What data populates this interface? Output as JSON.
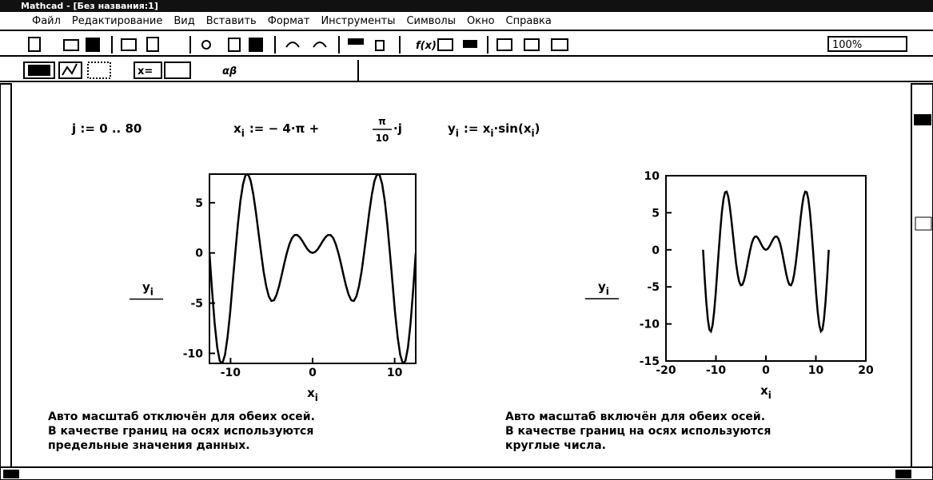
{
  "window_title": "Mathcad - [Без названия:1]",
  "menu": [
    "Файл",
    "Редактирование",
    "Вид",
    "Вставить",
    "Формат",
    "Инструменты",
    "Символы",
    "Окно",
    "Справка"
  ],
  "zoom": "100%",
  "equations": {
    "range": {
      "lhs": "j",
      "op": ":=",
      "rhs": "0 .. 80"
    },
    "x_def": {
      "lhs": "x",
      "lhs_sub": "i",
      "op": ":=",
      "rhs": "− 4·π +",
      "num": "π",
      "den": "10",
      "tail": "·j"
    },
    "y_def": {
      "lhs": "y",
      "lhs_sub": "i",
      "op": ":=",
      "rhs": "x",
      "rhs_sub": "i",
      "fn": "·sin(x",
      "fn_sub": "i",
      "close": ")"
    }
  },
  "chart_data": [
    {
      "type": "line",
      "xlabel": "x",
      "xlabel_sub": "i",
      "ylabel": "y",
      "ylabel_sub": "i",
      "x": [
        -12.57,
        -12.25,
        -11.94,
        -11.62,
        -11.31,
        -11,
        -10.68,
        -10.37,
        -10.05,
        -9.74,
        -9.42,
        -9.11,
        -8.8,
        -8.48,
        -8.17,
        -7.85,
        -7.54,
        -7.23,
        -6.91,
        -6.6,
        -6.28,
        -5.97,
        -5.65,
        -5.34,
        -5.03,
        -4.71,
        -4.4,
        -4.08,
        -3.77,
        -3.46,
        -3.14,
        -2.83,
        -2.51,
        -2.2,
        -1.88,
        -1.57,
        -1.26,
        -0.94,
        -0.63,
        -0.31,
        0,
        0.31,
        0.63,
        0.94,
        1.26,
        1.57,
        1.88,
        2.2,
        2.51,
        2.83,
        3.14,
        3.46,
        3.77,
        4.08,
        4.4,
        4.71,
        5.03,
        5.34,
        5.65,
        5.97,
        6.28,
        6.6,
        6.91,
        7.23,
        7.54,
        7.85,
        8.17,
        8.48,
        8.8,
        9.11,
        9.42,
        9.74,
        10.05,
        10.37,
        10.68,
        11,
        11.31,
        11.62,
        11.94,
        12.25,
        12.57
      ],
      "series": [
        {
          "color": "#000000",
          "values": [
            0,
            -3.79,
            -7.02,
            -9.4,
            -10.76,
            -11,
            -10.16,
            -8.39,
            -5.91,
            -3.01,
            0,
            2.82,
            5.17,
            6.86,
            7.77,
            7.85,
            7.17,
            5.85,
            4.06,
            2.04,
            0,
            -1.84,
            -3.32,
            -4.32,
            -4.78,
            -4.71,
            -4.18,
            -3.3,
            -2.22,
            -1.07,
            0,
            0.87,
            1.48,
            1.78,
            1.79,
            1.57,
            1.2,
            0.76,
            0.37,
            0.1,
            0,
            0.1,
            0.37,
            0.76,
            1.2,
            1.57,
            1.79,
            1.78,
            1.48,
            0.87,
            0,
            -1.07,
            -2.22,
            -3.3,
            -4.18,
            -4.71,
            -4.78,
            -4.32,
            -3.32,
            -1.84,
            0,
            2.04,
            4.06,
            5.85,
            7.17,
            7.85,
            7.77,
            6.86,
            5.17,
            2.82,
            0,
            -3.01,
            -5.91,
            -8.39,
            -10.16,
            -11,
            -10.76,
            -9.4,
            -7.02,
            -3.79,
            0
          ]
        }
      ],
      "xlim": [
        -12.57,
        12.57
      ],
      "ylim": [
        -11,
        7.85
      ],
      "xticks": [
        -10,
        0,
        10
      ],
      "yticks": [
        -10,
        -5,
        0,
        5
      ],
      "caption": [
        "Авто масштаб отключён для обеих осей.",
        "В качестве границ на осях используются",
        "предельные значения данных."
      ]
    },
    {
      "type": "line",
      "xlabel": "x",
      "xlabel_sub": "i",
      "ylabel": "y",
      "ylabel_sub": "i",
      "x": [
        -12.57,
        -12.25,
        -11.94,
        -11.62,
        -11.31,
        -11,
        -10.68,
        -10.37,
        -10.05,
        -9.74,
        -9.42,
        -9.11,
        -8.8,
        -8.48,
        -8.17,
        -7.85,
        -7.54,
        -7.23,
        -6.91,
        -6.6,
        -6.28,
        -5.97,
        -5.65,
        -5.34,
        -5.03,
        -4.71,
        -4.4,
        -4.08,
        -3.77,
        -3.46,
        -3.14,
        -2.83,
        -2.51,
        -2.2,
        -1.88,
        -1.57,
        -1.26,
        -0.94,
        -0.63,
        -0.31,
        0,
        0.31,
        0.63,
        0.94,
        1.26,
        1.57,
        1.88,
        2.2,
        2.51,
        2.83,
        3.14,
        3.46,
        3.77,
        4.08,
        4.4,
        4.71,
        5.03,
        5.34,
        5.65,
        5.97,
        6.28,
        6.6,
        6.91,
        7.23,
        7.54,
        7.85,
        8.17,
        8.48,
        8.8,
        9.11,
        9.42,
        9.74,
        10.05,
        10.37,
        10.68,
        11,
        11.31,
        11.62,
        11.94,
        12.25,
        12.57
      ],
      "series": [
        {
          "color": "#000000",
          "values": [
            0,
            -3.79,
            -7.02,
            -9.4,
            -10.76,
            -11,
            -10.16,
            -8.39,
            -5.91,
            -3.01,
            0,
            2.82,
            5.17,
            6.86,
            7.77,
            7.85,
            7.17,
            5.85,
            4.06,
            2.04,
            0,
            -1.84,
            -3.32,
            -4.32,
            -4.78,
            -4.71,
            -4.18,
            -3.3,
            -2.22,
            -1.07,
            0,
            0.87,
            1.48,
            1.78,
            1.79,
            1.57,
            1.2,
            0.76,
            0.37,
            0.1,
            0,
            0.1,
            0.37,
            0.76,
            1.2,
            1.57,
            1.79,
            1.78,
            1.48,
            0.87,
            0,
            -1.07,
            -2.22,
            -3.3,
            -4.18,
            -4.71,
            -4.78,
            -4.32,
            -3.32,
            -1.84,
            0,
            2.04,
            4.06,
            5.85,
            7.17,
            7.85,
            7.77,
            6.86,
            5.17,
            2.82,
            0,
            -3.01,
            -5.91,
            -8.39,
            -10.16,
            -11,
            -10.76,
            -9.4,
            -7.02,
            -3.79,
            0
          ]
        }
      ],
      "xlim": [
        -20,
        20
      ],
      "ylim": [
        -15,
        10
      ],
      "xticks": [
        -20,
        -10,
        0,
        10,
        20
      ],
      "yticks": [
        -15,
        -10,
        -5,
        0,
        5,
        10
      ],
      "caption": [
        "Авто масштаб включён для обеих осей.",
        "В качестве границ на осях используются",
        "круглые числа."
      ]
    }
  ]
}
